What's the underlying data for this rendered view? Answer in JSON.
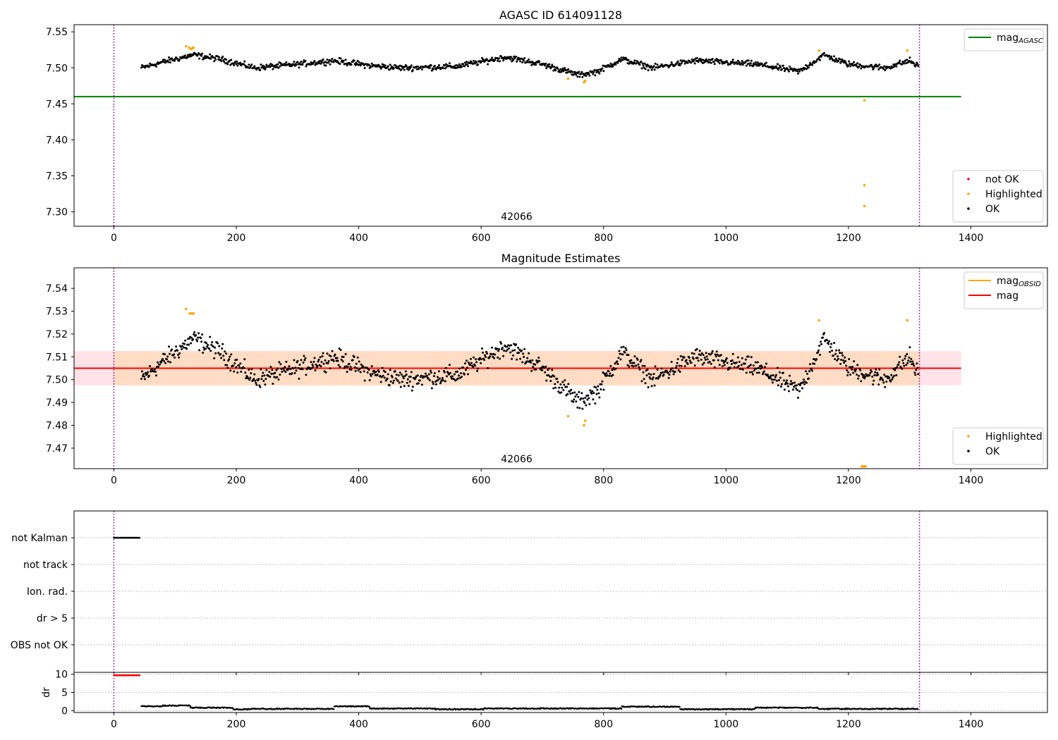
{
  "figure_title": "",
  "chart_data": [
    {
      "type": "scatter",
      "title": "AGASC ID 614091128",
      "xlabel": "",
      "ylabel": "",
      "xlim": [
        -65,
        1525
      ],
      "ylim": [
        7.28,
        7.56
      ],
      "xticks": [
        0,
        200,
        400,
        600,
        800,
        1000,
        1200,
        1400
      ],
      "xtick_labels": [
        "0",
        "200",
        "400",
        "600",
        "800",
        "1000",
        "1200",
        "1400"
      ],
      "yticks": [
        7.3,
        7.35,
        7.4,
        7.45,
        7.5,
        7.55
      ],
      "ytick_labels": [
        "7.30",
        "7.35",
        "7.40",
        "7.45",
        "7.50",
        "7.55"
      ],
      "obsid_label": "42066",
      "obsid_label_x": 658,
      "obsid_boundaries": [
        0,
        1316
      ],
      "ok_series": {
        "name": "OK",
        "color": "#000000",
        "x_range": [
          45,
          1314
        ],
        "count": 1100,
        "profile": [
          [
            45,
            7.5
          ],
          [
            80,
            7.508
          ],
          [
            130,
            7.518
          ],
          [
            175,
            7.512
          ],
          [
            230,
            7.5
          ],
          [
            300,
            7.505
          ],
          [
            360,
            7.51
          ],
          [
            420,
            7.503
          ],
          [
            470,
            7.5
          ],
          [
            560,
            7.502
          ],
          [
            640,
            7.515
          ],
          [
            700,
            7.505
          ],
          [
            760,
            7.49
          ],
          [
            790,
            7.495
          ],
          [
            830,
            7.512
          ],
          [
            880,
            7.5
          ],
          [
            950,
            7.51
          ],
          [
            1050,
            7.505
          ],
          [
            1120,
            7.495
          ],
          [
            1160,
            7.518
          ],
          [
            1200,
            7.505
          ],
          [
            1260,
            7.5
          ],
          [
            1300,
            7.51
          ],
          [
            1314,
            7.502
          ]
        ],
        "noise": 0.006
      },
      "highlighted_points": [
        [
          118,
          7.53
        ],
        [
          123,
          7.528
        ],
        [
          126,
          7.526
        ],
        [
          128,
          7.527
        ],
        [
          130,
          7.528
        ],
        [
          742,
          7.485
        ],
        [
          768,
          7.48
        ],
        [
          770,
          7.482
        ],
        [
          1152,
          7.524
        ],
        [
          1226,
          7.455
        ],
        [
          1226,
          7.337
        ],
        [
          1226,
          7.308
        ],
        [
          1296,
          7.524
        ]
      ],
      "lines": [
        {
          "name": "mag$_{AGASC}$",
          "label_main": "mag",
          "label_sub": "AGASC",
          "y": 7.46,
          "x": [
            -65,
            1384
          ],
          "color": "#008000"
        }
      ],
      "band": null,
      "legends": [
        {
          "position": "upper right",
          "entries": [
            {
              "type": "line",
              "color": "#008000",
              "label_main": "mag",
              "label_sub": "AGASC"
            }
          ]
        },
        {
          "position": "lower right",
          "entries": [
            {
              "type": "marker",
              "color": "#ff0000",
              "label": "not OK"
            },
            {
              "type": "marker",
              "color": "#ffa500",
              "label": "Highlighted"
            },
            {
              "type": "marker",
              "color": "#000000",
              "label": "OK"
            }
          ]
        }
      ]
    },
    {
      "type": "scatter",
      "title": "Magnitude Estimates",
      "xlabel": "",
      "ylabel": "",
      "xlim": [
        -65,
        1525
      ],
      "ylim": [
        7.461,
        7.549
      ],
      "xticks": [
        0,
        200,
        400,
        600,
        800,
        1000,
        1200,
        1400
      ],
      "xtick_labels": [
        "0",
        "200",
        "400",
        "600",
        "800",
        "1000",
        "1200",
        "1400"
      ],
      "yticks": [
        7.47,
        7.48,
        7.49,
        7.5,
        7.51,
        7.52,
        7.53,
        7.54
      ],
      "ytick_labels": [
        "7.47",
        "7.48",
        "7.49",
        "7.50",
        "7.51",
        "7.52",
        "7.53",
        "7.54"
      ],
      "obsid_label": "42066",
      "obsid_label_x": 658,
      "obsid_boundaries": [
        0,
        1316
      ],
      "ok_series": {
        "name": "OK",
        "color": "#000000",
        "x_range": [
          45,
          1314
        ],
        "count": 1100,
        "profile": [
          [
            45,
            7.5
          ],
          [
            80,
            7.508
          ],
          [
            130,
            7.518
          ],
          [
            175,
            7.512
          ],
          [
            230,
            7.5
          ],
          [
            300,
            7.505
          ],
          [
            360,
            7.51
          ],
          [
            420,
            7.503
          ],
          [
            470,
            7.5
          ],
          [
            560,
            7.502
          ],
          [
            640,
            7.515
          ],
          [
            700,
            7.505
          ],
          [
            760,
            7.49
          ],
          [
            790,
            7.495
          ],
          [
            830,
            7.512
          ],
          [
            880,
            7.5
          ],
          [
            950,
            7.51
          ],
          [
            1050,
            7.505
          ],
          [
            1120,
            7.495
          ],
          [
            1160,
            7.518
          ],
          [
            1200,
            7.505
          ],
          [
            1260,
            7.5
          ],
          [
            1300,
            7.51
          ],
          [
            1314,
            7.502
          ]
        ],
        "noise": 0.006
      },
      "highlighted_points": [
        [
          118,
          7.531
        ],
        [
          124,
          7.529
        ],
        [
          127,
          7.529
        ],
        [
          130,
          7.529
        ],
        [
          742,
          7.484
        ],
        [
          768,
          7.48
        ],
        [
          770,
          7.482
        ],
        [
          1152,
          7.526
        ],
        [
          1222,
          7.462
        ],
        [
          1224,
          7.462
        ],
        [
          1226,
          7.462
        ],
        [
          1228,
          7.462
        ],
        [
          1296,
          7.526
        ]
      ],
      "lines": [
        {
          "name": "mag",
          "label_main": "mag",
          "label_sub": "",
          "y": 7.505,
          "x": [
            -65,
            1384
          ],
          "color": "#ff0000"
        }
      ],
      "band": {
        "y1": 7.4975,
        "y2": 7.5125,
        "x": [
          -65,
          1384
        ],
        "outer_color": "#ffc0cb",
        "inner_color": "#ffdab9",
        "inner_x": [
          0,
          1316
        ]
      },
      "legends": [
        {
          "position": "upper right",
          "entries": [
            {
              "type": "line",
              "color": "#ffa500",
              "label_main": "mag",
              "label_sub": "OBSID"
            },
            {
              "type": "line",
              "color": "#ff0000",
              "label_main": "mag",
              "label_sub": ""
            }
          ]
        },
        {
          "position": "lower right",
          "entries": [
            {
              "type": "marker",
              "color": "#ffa500",
              "label": "Highlighted"
            },
            {
              "type": "marker",
              "color": "#000000",
              "label": "OK"
            }
          ]
        }
      ]
    },
    {
      "type": "scatter",
      "title": "",
      "xlabel": "",
      "ylabel": "",
      "xlim": [
        -65,
        1525
      ],
      "categories": [
        "not Kalman",
        "not track",
        "Ion. rad.",
        "dr > 5",
        "OBS not OK"
      ],
      "obsid_boundaries": [
        0,
        1316
      ],
      "flag_points": [
        {
          "category": "not Kalman",
          "x_range": [
            0,
            43
          ],
          "color": "#000000"
        }
      ]
    },
    {
      "type": "scatter",
      "title": "",
      "xlabel": "",
      "ylabel": "dr",
      "xlim": [
        -65,
        1525
      ],
      "ylim": [
        -0.5,
        10.5
      ],
      "xticks": [
        0,
        200,
        400,
        600,
        800,
        1000,
        1200,
        1400
      ],
      "xtick_labels": [
        "0",
        "200",
        "400",
        "600",
        "800",
        "1000",
        "1200",
        "1400"
      ],
      "yticks": [
        0,
        5,
        10
      ],
      "ytick_labels": [
        "0",
        "5",
        "10"
      ],
      "obsid_boundaries": [
        0,
        1316
      ],
      "clipped_points": {
        "x_range": [
          0,
          43
        ],
        "y": 9.7,
        "color": "#ff0000"
      },
      "dr_segments": [
        {
          "x": [
            45,
            80
          ],
          "y": 1.2
        },
        {
          "x": [
            80,
            125
          ],
          "y": 1.4
        },
        {
          "x": [
            125,
            195
          ],
          "y": 0.8
        },
        {
          "x": [
            195,
            220
          ],
          "y": 0.4
        },
        {
          "x": [
            220,
            360
          ],
          "y": 0.5
        },
        {
          "x": [
            360,
            418
          ],
          "y": 1.2
        },
        {
          "x": [
            418,
            525
          ],
          "y": 0.6
        },
        {
          "x": [
            525,
            605
          ],
          "y": 0.4
        },
        {
          "x": [
            605,
            830
          ],
          "y": 0.6
        },
        {
          "x": [
            830,
            925
          ],
          "y": 1.1
        },
        {
          "x": [
            925,
            1048
          ],
          "y": 0.4
        },
        {
          "x": [
            1048,
            1150
          ],
          "y": 0.8
        },
        {
          "x": [
            1150,
            1314
          ],
          "y": 0.5
        }
      ]
    }
  ]
}
